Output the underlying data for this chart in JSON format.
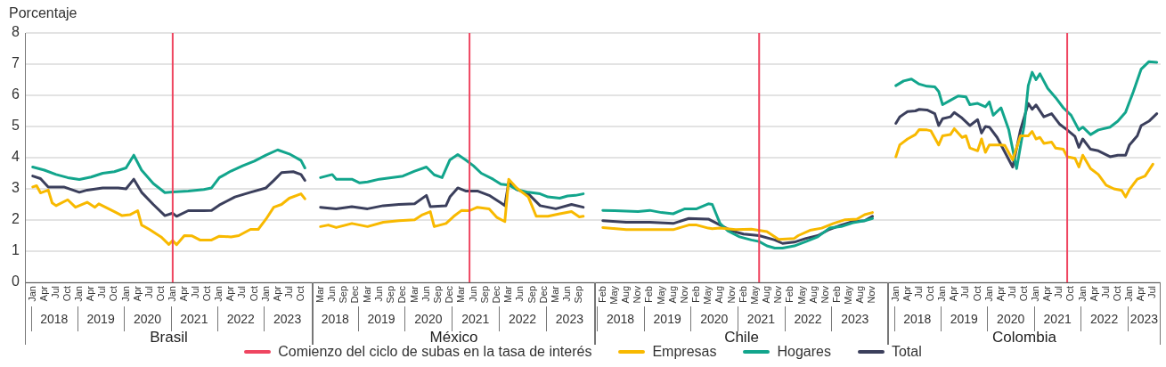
{
  "chart_data": [
    {
      "type": "line",
      "xlabel": "Brasil",
      "ylabel": "Porcentaje",
      "legend": "bottom",
      "grid": "y",
      "marker": "none",
      "line_style": "solid",
      "xlim": [
        "2017-11",
        "2024-01"
      ],
      "ylim": [
        0,
        8
      ],
      "yticks": [
        0,
        1,
        2,
        3,
        4,
        5,
        6,
        7,
        8
      ],
      "xticks": [
        {
          "value": "2018-01",
          "label": "Jan"
        },
        {
          "value": "2018-04",
          "label": "Apr"
        },
        {
          "value": "2018-07",
          "label": "Jul"
        },
        {
          "value": "2018-10",
          "label": "Oct"
        },
        {
          "value": "2019-01",
          "label": "Jan"
        },
        {
          "value": "2019-04",
          "label": "Apr"
        },
        {
          "value": "2019-07",
          "label": "Jul"
        },
        {
          "value": "2019-10",
          "label": "Oct"
        },
        {
          "value": "2020-01",
          "label": "Jan"
        },
        {
          "value": "2020-04",
          "label": "Apr"
        },
        {
          "value": "2020-07",
          "label": "Jul"
        },
        {
          "value": "2020-10",
          "label": "Oct"
        },
        {
          "value": "2021-01",
          "label": "Jan"
        },
        {
          "value": "2021-04",
          "label": "Apr"
        },
        {
          "value": "2021-07",
          "label": "Jul"
        },
        {
          "value": "2021-10",
          "label": "Oct"
        },
        {
          "value": "2022-01",
          "label": "Jan"
        },
        {
          "value": "2022-04",
          "label": "Apr"
        },
        {
          "value": "2022-07",
          "label": "Jul"
        },
        {
          "value": "2022-10",
          "label": "Oct"
        },
        {
          "value": "2023-01",
          "label": "Jan"
        },
        {
          "value": "2023-04",
          "label": "Apr"
        },
        {
          "value": "2023-07",
          "label": "Jul"
        },
        {
          "value": "2023-10",
          "label": "Oct"
        }
      ],
      "annotations": [
        "2018",
        "2019",
        "2020",
        "2021",
        "2022",
        "2023"
      ],
      "ref_lines": [
        {
          "axis": "x",
          "value": "2021-01",
          "label": "Comienzo del ciclo de subas en la tasa de interés",
          "color": "#ef4560"
        }
      ],
      "series": [
        {
          "name": "Empresas",
          "color": "#f8b900",
          "x": [
            "2018-01",
            "2018-02",
            "2018-03",
            "2018-05",
            "2018-06",
            "2018-07",
            "2018-10",
            "2018-12",
            "2019-03",
            "2019-05",
            "2019-06",
            "2019-10",
            "2019-12",
            "2020-02",
            "2020-04",
            "2020-05",
            "2020-07",
            "2020-10",
            "2020-12",
            "2021-01",
            "2021-02",
            "2021-04",
            "2021-06",
            "2021-08",
            "2021-11",
            "2022-01",
            "2022-04",
            "2022-06",
            "2022-09",
            "2022-11",
            "2023-01",
            "2023-03",
            "2023-05",
            "2023-07",
            "2023-10",
            "2023-11"
          ],
          "values": [
            3.06,
            3.1,
            2.87,
            2.96,
            2.55,
            2.46,
            2.65,
            2.41,
            2.57,
            2.41,
            2.52,
            2.27,
            2.14,
            2.17,
            2.3,
            1.84,
            1.7,
            1.46,
            1.22,
            1.34,
            1.21,
            1.5,
            1.49,
            1.36,
            1.36,
            1.48,
            1.46,
            1.5,
            1.7,
            1.7,
            2.03,
            2.41,
            2.5,
            2.7,
            2.84,
            2.68
          ]
        },
        {
          "name": "Hogares",
          "color": "#12a58c",
          "x": [
            "2018-01",
            "2018-04",
            "2018-07",
            "2018-10",
            "2019-01",
            "2019-04",
            "2019-07",
            "2019-10",
            "2020-01",
            "2020-03",
            "2020-05",
            "2020-08",
            "2020-11",
            "2021-01",
            "2021-05",
            "2021-09",
            "2021-11",
            "2022-01",
            "2022-04",
            "2022-07",
            "2022-10",
            "2023-01",
            "2023-04",
            "2023-07",
            "2023-10",
            "2023-11"
          ],
          "values": [
            3.7,
            3.6,
            3.46,
            3.36,
            3.3,
            3.38,
            3.5,
            3.55,
            3.67,
            4.08,
            3.6,
            3.17,
            2.88,
            2.9,
            2.93,
            2.98,
            3.03,
            3.36,
            3.57,
            3.74,
            3.89,
            4.08,
            4.25,
            4.12,
            3.91,
            3.67
          ]
        },
        {
          "name": "Total",
          "color": "#3b3f5c",
          "x": [
            "2018-01",
            "2018-03",
            "2018-05",
            "2018-09",
            "2019-01",
            "2019-03",
            "2019-07",
            "2019-11",
            "2020-01",
            "2020-03",
            "2020-05",
            "2020-08",
            "2020-11",
            "2021-01",
            "2021-02",
            "2021-05",
            "2021-09",
            "2021-11",
            "2022-01",
            "2022-05",
            "2022-09",
            "2023-01",
            "2023-03",
            "2023-05",
            "2023-08",
            "2023-10",
            "2023-11"
          ],
          "values": [
            3.41,
            3.33,
            3.06,
            3.06,
            2.89,
            2.96,
            3.03,
            3.03,
            3.0,
            3.31,
            2.89,
            2.5,
            2.14,
            2.22,
            2.12,
            2.3,
            2.3,
            2.31,
            2.48,
            2.74,
            2.89,
            3.03,
            3.27,
            3.52,
            3.55,
            3.46,
            3.27
          ]
        }
      ]
    },
    {
      "type": "line",
      "xlabel": "México",
      "grid": "y",
      "marker": "none",
      "line_style": "solid",
      "tick_labels": "x",
      "xlim": [
        "2018-01",
        "2024-01"
      ],
      "ylim": [
        0,
        8
      ],
      "yticks": [
        0,
        1,
        2,
        3,
        4,
        5,
        6,
        7,
        8
      ],
      "xticks": [
        {
          "value": "2018-03",
          "label": "Mar"
        },
        {
          "value": "2018-06",
          "label": "Jun"
        },
        {
          "value": "2018-09",
          "label": "Sep"
        },
        {
          "value": "2018-12",
          "label": "Dec"
        },
        {
          "value": "2019-03",
          "label": "Mar"
        },
        {
          "value": "2019-06",
          "label": "Jun"
        },
        {
          "value": "2019-09",
          "label": "Sep"
        },
        {
          "value": "2019-12",
          "label": "Dec"
        },
        {
          "value": "2020-03",
          "label": "Mar"
        },
        {
          "value": "2020-06",
          "label": "Jun"
        },
        {
          "value": "2020-09",
          "label": "Sep"
        },
        {
          "value": "2020-12",
          "label": "Dec"
        },
        {
          "value": "2021-03",
          "label": "Mar"
        },
        {
          "value": "2021-06",
          "label": "Jun"
        },
        {
          "value": "2021-09",
          "label": "Sep"
        },
        {
          "value": "2021-12",
          "label": "Dec"
        },
        {
          "value": "2022-03",
          "label": "Mar"
        },
        {
          "value": "2022-06",
          "label": "Jun"
        },
        {
          "value": "2022-09",
          "label": "Sep"
        },
        {
          "value": "2022-12",
          "label": "Dec"
        },
        {
          "value": "2023-03",
          "label": "Mar"
        },
        {
          "value": "2023-06",
          "label": "Jun"
        },
        {
          "value": "2023-09",
          "label": "Sep"
        }
      ],
      "annotations": [
        "2018",
        "2019",
        "2020",
        "2021",
        "2022",
        "2023"
      ],
      "ref_lines": [
        {
          "axis": "x",
          "value": "2021-05",
          "color": "#ef4560"
        }
      ],
      "series": [
        {
          "color": "#f8b900",
          "x": [
            "2018-03",
            "2018-05",
            "2018-07",
            "2018-11",
            "2019-03",
            "2019-07",
            "2019-11",
            "2020-03",
            "2020-05",
            "2020-07",
            "2020-08",
            "2020-11",
            "2021-01",
            "2021-03",
            "2021-05",
            "2021-07",
            "2021-10",
            "2021-12",
            "2022-02",
            "2022-03",
            "2022-05",
            "2022-08",
            "2022-10",
            "2023-01",
            "2023-04",
            "2023-07",
            "2023-09",
            "2023-10"
          ],
          "values": [
            1.79,
            1.84,
            1.76,
            1.89,
            1.79,
            1.93,
            1.98,
            2.01,
            2.17,
            2.27,
            1.79,
            1.89,
            2.12,
            2.31,
            2.3,
            2.41,
            2.36,
            2.08,
            1.95,
            3.31,
            3.03,
            2.74,
            2.12,
            2.12,
            2.2,
            2.27,
            2.1,
            2.12
          ]
        },
        {
          "color": "#12a58c",
          "x": [
            "2018-03",
            "2018-06",
            "2018-07",
            "2018-11",
            "2019-01",
            "2019-03",
            "2019-06",
            "2019-09",
            "2019-12",
            "2020-03",
            "2020-06",
            "2020-08",
            "2020-10",
            "2020-12",
            "2021-02",
            "2021-04",
            "2021-06",
            "2021-08",
            "2021-11",
            "2022-01",
            "2022-03",
            "2022-05",
            "2022-08",
            "2022-11",
            "2023-01",
            "2023-04",
            "2023-06",
            "2023-08",
            "2023-10"
          ],
          "values": [
            3.36,
            3.46,
            3.31,
            3.31,
            3.19,
            3.22,
            3.31,
            3.36,
            3.41,
            3.57,
            3.7,
            3.45,
            3.36,
            3.93,
            4.1,
            3.93,
            3.74,
            3.5,
            3.31,
            3.15,
            3.12,
            2.98,
            2.89,
            2.84,
            2.74,
            2.7,
            2.77,
            2.79,
            2.84
          ]
        },
        {
          "color": "#3b3f5c",
          "x": [
            "2018-03",
            "2018-07",
            "2018-11",
            "2019-03",
            "2019-07",
            "2019-11",
            "2020-03",
            "2020-06",
            "2020-07",
            "2020-11",
            "2020-12",
            "2021-02",
            "2021-04",
            "2021-07",
            "2021-10",
            "2022-01",
            "2022-02",
            "2022-03",
            "2022-05",
            "2022-08",
            "2022-11",
            "2023-03",
            "2023-07",
            "2023-10"
          ],
          "values": [
            2.41,
            2.36,
            2.43,
            2.36,
            2.46,
            2.5,
            2.52,
            2.79,
            2.43,
            2.46,
            2.74,
            3.03,
            2.93,
            2.93,
            2.79,
            2.55,
            2.46,
            3.22,
            2.98,
            2.84,
            2.46,
            2.36,
            2.5,
            2.41
          ]
        }
      ]
    },
    {
      "type": "line",
      "xlabel": "Chile",
      "grid": "y",
      "marker": "none",
      "line_style": "solid",
      "tick_labels": "x",
      "xlim": [
        "2017-12",
        "2024-03"
      ],
      "ylim": [
        0,
        8
      ],
      "yticks": [
        0,
        1,
        2,
        3,
        4,
        5,
        6,
        7,
        8
      ],
      "xticks": [
        {
          "value": "2018-02",
          "label": "Feb"
        },
        {
          "value": "2018-05",
          "label": "May"
        },
        {
          "value": "2018-08",
          "label": "Aug"
        },
        {
          "value": "2018-11",
          "label": "Nov"
        },
        {
          "value": "2019-02",
          "label": "Feb"
        },
        {
          "value": "2019-05",
          "label": "May"
        },
        {
          "value": "2019-08",
          "label": "Aug"
        },
        {
          "value": "2019-11",
          "label": "Nov"
        },
        {
          "value": "2020-02",
          "label": "Feb"
        },
        {
          "value": "2020-05",
          "label": "May"
        },
        {
          "value": "2020-08",
          "label": "Aug"
        },
        {
          "value": "2020-11",
          "label": "Nov"
        },
        {
          "value": "2021-02",
          "label": "Feb"
        },
        {
          "value": "2021-05",
          "label": "May"
        },
        {
          "value": "2021-08",
          "label": "Aug"
        },
        {
          "value": "2021-11",
          "label": "Nov"
        },
        {
          "value": "2022-02",
          "label": "Feb"
        },
        {
          "value": "2022-05",
          "label": "May"
        },
        {
          "value": "2022-08",
          "label": "Aug"
        },
        {
          "value": "2022-11",
          "label": "Nov"
        },
        {
          "value": "2023-02",
          "label": "Feb"
        },
        {
          "value": "2023-05",
          "label": "May"
        },
        {
          "value": "2023-08",
          "label": "Aug"
        },
        {
          "value": "2023-11",
          "label": "Nov"
        }
      ],
      "annotations": [
        "2018",
        "2019",
        "2020",
        "2021",
        "2022",
        "2023"
      ],
      "ref_lines": [
        {
          "axis": "x",
          "value": "2021-06",
          "color": "#ef4560"
        }
      ],
      "series": [
        {
          "color": "#f8b900",
          "x": [
            "2018-02",
            "2018-08",
            "2019-02",
            "2019-08",
            "2019-12",
            "2020-02",
            "2020-05",
            "2020-06",
            "2020-08",
            "2020-12",
            "2021-04",
            "2021-08",
            "2021-11",
            "2022-03",
            "2022-04",
            "2022-07",
            "2022-10",
            "2023-01",
            "2023-04",
            "2023-07",
            "2023-09",
            "2023-11"
          ],
          "values": [
            1.76,
            1.69,
            1.69,
            1.69,
            1.84,
            1.84,
            1.74,
            1.72,
            1.74,
            1.69,
            1.71,
            1.63,
            1.38,
            1.41,
            1.5,
            1.67,
            1.74,
            1.89,
            2.01,
            2.03,
            2.17,
            2.24
          ]
        },
        {
          "color": "#12a58c",
          "x": [
            "2018-02",
            "2018-05",
            "2018-11",
            "2019-02",
            "2019-05",
            "2019-08",
            "2019-11",
            "2020-02",
            "2020-05",
            "2020-06",
            "2020-08",
            "2020-10",
            "2021-01",
            "2021-04",
            "2021-06",
            "2021-08",
            "2021-10",
            "2021-12",
            "2022-03",
            "2022-06",
            "2022-09",
            "2022-12",
            "2023-03",
            "2023-06",
            "2023-09",
            "2023-11"
          ],
          "values": [
            2.31,
            2.3,
            2.27,
            2.31,
            2.24,
            2.2,
            2.36,
            2.36,
            2.52,
            2.5,
            1.89,
            1.65,
            1.46,
            1.36,
            1.31,
            1.17,
            1.1,
            1.1,
            1.17,
            1.31,
            1.46,
            1.74,
            1.79,
            1.91,
            1.98,
            2.05
          ]
        },
        {
          "color": "#3b3f5c",
          "x": [
            "2018-02",
            "2018-08",
            "2019-02",
            "2019-08",
            "2019-12",
            "2020-05",
            "2020-08",
            "2020-11",
            "2021-02",
            "2021-06",
            "2021-10",
            "2021-12",
            "2022-03",
            "2022-06",
            "2022-09",
            "2022-12",
            "2023-03",
            "2023-06",
            "2023-09",
            "2023-11"
          ],
          "values": [
            1.98,
            1.93,
            1.93,
            1.89,
            2.05,
            2.03,
            1.84,
            1.65,
            1.55,
            1.5,
            1.36,
            1.25,
            1.29,
            1.41,
            1.5,
            1.7,
            1.84,
            1.95,
            1.98,
            2.12
          ]
        }
      ]
    },
    {
      "type": "line",
      "xlabel": "Colombia",
      "grid": "y",
      "marker": "none",
      "line_style": "solid",
      "tick_labels": "x",
      "xlim": [
        "2017-11",
        "2023-09"
      ],
      "ylim": [
        0,
        8
      ],
      "yticks": [
        0,
        1,
        2,
        3,
        4,
        5,
        6,
        7,
        8
      ],
      "xticks": [
        {
          "value": "2018-01",
          "label": "Jan"
        },
        {
          "value": "2018-04",
          "label": "Apr"
        },
        {
          "value": "2018-07",
          "label": "Jul"
        },
        {
          "value": "2018-10",
          "label": "Oct"
        },
        {
          "value": "2019-01",
          "label": "Jan"
        },
        {
          "value": "2019-04",
          "label": "Apr"
        },
        {
          "value": "2019-07",
          "label": "Jul"
        },
        {
          "value": "2019-10",
          "label": "Oct"
        },
        {
          "value": "2020-01",
          "label": "Jan"
        },
        {
          "value": "2020-04",
          "label": "Apr"
        },
        {
          "value": "2020-07",
          "label": "Jul"
        },
        {
          "value": "2020-10",
          "label": "Oct"
        },
        {
          "value": "2021-01",
          "label": "Jan"
        },
        {
          "value": "2021-04",
          "label": "Apr"
        },
        {
          "value": "2021-07",
          "label": "Jul"
        },
        {
          "value": "2021-10",
          "label": "Oct"
        },
        {
          "value": "2022-01",
          "label": "Jan"
        },
        {
          "value": "2022-04",
          "label": "Apr"
        },
        {
          "value": "2022-07",
          "label": "Jul"
        },
        {
          "value": "2022-10",
          "label": "Oct"
        },
        {
          "value": "2023-01",
          "label": "Jan"
        },
        {
          "value": "2023-04",
          "label": "Apr"
        },
        {
          "value": "2023-07",
          "label": "Jul"
        }
      ],
      "annotations": [
        "2018",
        "2019",
        "2020",
        "2021",
        "2022",
        "2023"
      ],
      "ref_lines": [
        {
          "axis": "x",
          "value": "2021-09",
          "color": "#ef4560"
        }
      ],
      "series": [
        {
          "color": "#f8b900",
          "x": [
            "2018-01",
            "2018-02",
            "2018-04",
            "2018-06",
            "2018-07",
            "2018-09",
            "2018-10",
            "2018-12",
            "2019-01",
            "2019-03",
            "2019-04",
            "2019-06",
            "2019-07",
            "2019-08",
            "2019-10",
            "2019-11",
            "2019-12",
            "2020-01",
            "2020-04",
            "2020-05",
            "2020-07",
            "2020-09",
            "2020-11",
            "2020-12",
            "2021-01",
            "2021-02",
            "2021-03",
            "2021-05",
            "2021-06",
            "2021-08",
            "2021-09",
            "2021-11",
            "2021-12",
            "2022-01",
            "2022-03",
            "2022-05",
            "2022-07",
            "2022-09",
            "2022-11",
            "2022-12",
            "2023-01",
            "2023-03",
            "2023-05",
            "2023-07"
          ],
          "values": [
            4.03,
            4.41,
            4.6,
            4.74,
            4.9,
            4.89,
            4.86,
            4.41,
            4.7,
            4.74,
            4.93,
            4.65,
            4.7,
            4.31,
            4.22,
            4.6,
            4.17,
            4.41,
            4.41,
            4.39,
            3.93,
            4.7,
            4.7,
            4.84,
            4.6,
            4.65,
            4.46,
            4.5,
            4.31,
            4.27,
            4.03,
            3.98,
            3.7,
            4.08,
            3.65,
            3.46,
            3.12,
            3.0,
            2.95,
            2.74,
            2.98,
            3.31,
            3.41,
            3.79
          ]
        },
        {
          "color": "#12a58c",
          "x": [
            "2018-01",
            "2018-03",
            "2018-05",
            "2018-07",
            "2018-09",
            "2018-11",
            "2018-12",
            "2019-01",
            "2019-03",
            "2019-05",
            "2019-07",
            "2019-08",
            "2019-10",
            "2019-12",
            "2020-01",
            "2020-02",
            "2020-04",
            "2020-06",
            "2020-08",
            "2020-10",
            "2020-11",
            "2020-12",
            "2021-01",
            "2021-02",
            "2021-04",
            "2021-06",
            "2021-08",
            "2021-10",
            "2021-12",
            "2022-01",
            "2022-03",
            "2022-05",
            "2022-08",
            "2022-10",
            "2022-12",
            "2023-02",
            "2023-04",
            "2023-06",
            "2023-08"
          ],
          "values": [
            6.31,
            6.46,
            6.52,
            6.36,
            6.29,
            6.27,
            6.12,
            5.7,
            5.84,
            5.98,
            5.95,
            5.7,
            5.74,
            5.63,
            5.79,
            5.36,
            5.6,
            4.89,
            3.65,
            5.08,
            6.31,
            6.74,
            6.5,
            6.69,
            6.22,
            5.93,
            5.6,
            5.36,
            4.89,
            4.98,
            4.74,
            4.89,
            4.98,
            5.17,
            5.46,
            6.12,
            6.84,
            7.08,
            7.06
          ]
        },
        {
          "color": "#3b3f5c",
          "x": [
            "2018-01",
            "2018-02",
            "2018-04",
            "2018-06",
            "2018-07",
            "2018-09",
            "2018-11",
            "2018-12",
            "2019-01",
            "2019-03",
            "2019-04",
            "2019-06",
            "2019-08",
            "2019-10",
            "2019-11",
            "2019-12",
            "2020-01",
            "2020-03",
            "2020-07",
            "2020-09",
            "2020-11",
            "2020-12",
            "2021-01",
            "2021-03",
            "2021-05",
            "2021-07",
            "2021-09",
            "2021-11",
            "2021-12",
            "2022-01",
            "2022-03",
            "2022-05",
            "2022-08",
            "2022-10",
            "2022-12",
            "2023-01",
            "2023-03",
            "2023-04",
            "2023-06",
            "2023-08"
          ],
          "values": [
            5.1,
            5.31,
            5.48,
            5.5,
            5.55,
            5.53,
            5.41,
            5.03,
            5.25,
            5.31,
            5.45,
            5.27,
            5.03,
            5.22,
            4.79,
            5.0,
            4.98,
            4.65,
            3.7,
            4.89,
            5.74,
            5.55,
            5.69,
            5.31,
            5.41,
            5.08,
            4.89,
            4.68,
            4.33,
            4.6,
            4.27,
            4.22,
            4.03,
            4.08,
            4.08,
            4.41,
            4.7,
            5.03,
            5.17,
            5.41
          ]
        }
      ]
    }
  ]
}
